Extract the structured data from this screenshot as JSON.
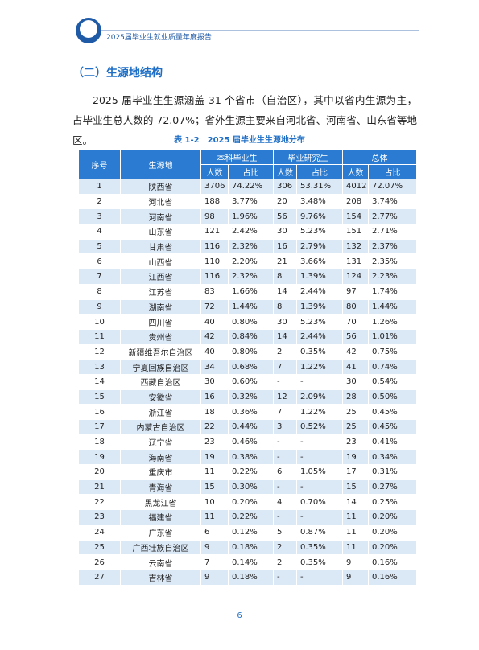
{
  "header": {
    "title": "2025届毕业生就业质量年度报告"
  },
  "section": {
    "title": "（二）生源地结构",
    "paragraph": "2025 届毕业生生源涵盖 31 个省市（自治区），其中以省内生源为主，占毕业生总人数的 72.07%；省外生源主要来自河北省、河南省、山东省等地区。"
  },
  "table": {
    "caption": "表 1-2　2025 届毕业生生源地分布",
    "header": {
      "top": [
        "序号",
        "生源地",
        "本科毕业生",
        "毕业研究生",
        "总体"
      ],
      "sub": [
        "人数",
        "占比",
        "人数",
        "占比",
        "人数",
        "占比"
      ]
    },
    "rows": [
      [
        "1",
        "陕西省",
        "3706",
        "74.22%",
        "306",
        "53.31%",
        "4012",
        "72.07%"
      ],
      [
        "2",
        "河北省",
        "188",
        "3.77%",
        "20",
        "3.48%",
        "208",
        "3.74%"
      ],
      [
        "3",
        "河南省",
        "98",
        "1.96%",
        "56",
        "9.76%",
        "154",
        "2.77%"
      ],
      [
        "4",
        "山东省",
        "121",
        "2.42%",
        "30",
        "5.23%",
        "151",
        "2.71%"
      ],
      [
        "5",
        "甘肃省",
        "116",
        "2.32%",
        "16",
        "2.79%",
        "132",
        "2.37%"
      ],
      [
        "6",
        "山西省",
        "110",
        "2.20%",
        "21",
        "3.66%",
        "131",
        "2.35%"
      ],
      [
        "7",
        "江西省",
        "116",
        "2.32%",
        "8",
        "1.39%",
        "124",
        "2.23%"
      ],
      [
        "8",
        "江苏省",
        "83",
        "1.66%",
        "14",
        "2.44%",
        "97",
        "1.74%"
      ],
      [
        "9",
        "湖南省",
        "72",
        "1.44%",
        "8",
        "1.39%",
        "80",
        "1.44%"
      ],
      [
        "10",
        "四川省",
        "40",
        "0.80%",
        "30",
        "5.23%",
        "70",
        "1.26%"
      ],
      [
        "11",
        "贵州省",
        "42",
        "0.84%",
        "14",
        "2.44%",
        "56",
        "1.01%"
      ],
      [
        "12",
        "新疆维吾尔自治区",
        "40",
        "0.80%",
        "2",
        "0.35%",
        "42",
        "0.75%"
      ],
      [
        "13",
        "宁夏回族自治区",
        "34",
        "0.68%",
        "7",
        "1.22%",
        "41",
        "0.74%"
      ],
      [
        "14",
        "西藏自治区",
        "30",
        "0.60%",
        "-",
        "-",
        "30",
        "0.54%"
      ],
      [
        "15",
        "安徽省",
        "16",
        "0.32%",
        "12",
        "2.09%",
        "28",
        "0.50%"
      ],
      [
        "16",
        "浙江省",
        "18",
        "0.36%",
        "7",
        "1.22%",
        "25",
        "0.45%"
      ],
      [
        "17",
        "内蒙古自治区",
        "22",
        "0.44%",
        "3",
        "0.52%",
        "25",
        "0.45%"
      ],
      [
        "18",
        "辽宁省",
        "23",
        "0.46%",
        "-",
        "-",
        "23",
        "0.41%"
      ],
      [
        "19",
        "海南省",
        "19",
        "0.38%",
        "-",
        "-",
        "19",
        "0.34%"
      ],
      [
        "20",
        "重庆市",
        "11",
        "0.22%",
        "6",
        "1.05%",
        "17",
        "0.31%"
      ],
      [
        "21",
        "青海省",
        "15",
        "0.30%",
        "-",
        "-",
        "15",
        "0.27%"
      ],
      [
        "22",
        "黑龙江省",
        "10",
        "0.20%",
        "4",
        "0.70%",
        "14",
        "0.25%"
      ],
      [
        "23",
        "福建省",
        "11",
        "0.22%",
        "-",
        "-",
        "11",
        "0.20%"
      ],
      [
        "24",
        "广东省",
        "6",
        "0.12%",
        "5",
        "0.87%",
        "11",
        "0.20%"
      ],
      [
        "25",
        "广西壮族自治区",
        "9",
        "0.18%",
        "2",
        "0.35%",
        "11",
        "0.20%"
      ],
      [
        "26",
        "云南省",
        "7",
        "0.14%",
        "2",
        "0.35%",
        "9",
        "0.16%"
      ],
      [
        "27",
        "吉林省",
        "9",
        "0.18%",
        "-",
        "-",
        "9",
        "0.16%"
      ]
    ]
  },
  "footer": {
    "page": "6"
  }
}
